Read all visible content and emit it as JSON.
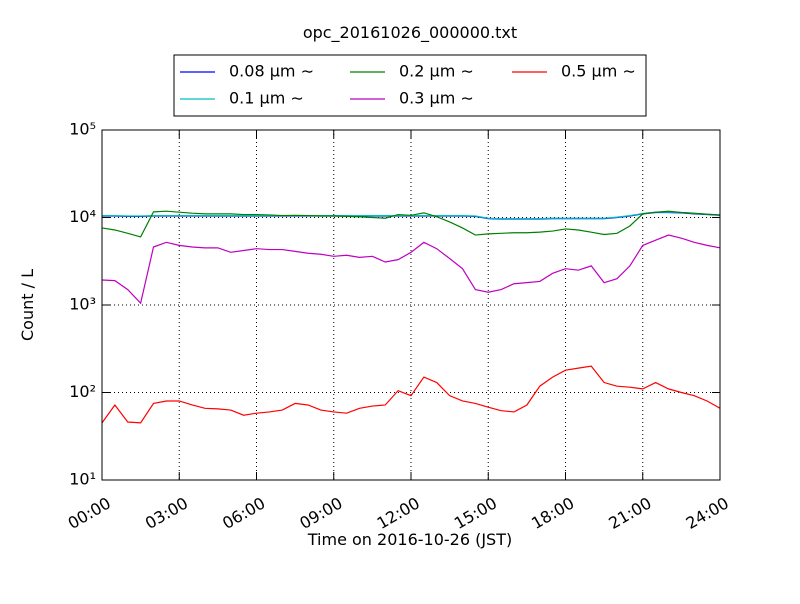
{
  "chart_data": {
    "type": "line",
    "title": "opc_20161026_000000.txt",
    "xlabel": "Time on 2016-10-26 (JST)",
    "ylabel": "Count / L",
    "yscale": "log",
    "grid": true,
    "legend": "top",
    "xlim": [
      0,
      24
    ],
    "xticks": [
      {
        "value": 0,
        "label": "00:00"
      },
      {
        "value": 3,
        "label": "03:00"
      },
      {
        "value": 6,
        "label": "06:00"
      },
      {
        "value": 9,
        "label": "09:00"
      },
      {
        "value": 12,
        "label": "12:00"
      },
      {
        "value": 15,
        "label": "15:00"
      },
      {
        "value": 18,
        "label": "18:00"
      },
      {
        "value": 21,
        "label": "21:00"
      },
      {
        "value": 24,
        "label": "24:00"
      }
    ],
    "ylim": [
      10,
      100000
    ],
    "yticks": [
      {
        "value": 10,
        "label": "10¹"
      },
      {
        "value": 100,
        "label": "10²"
      },
      {
        "value": 1000,
        "label": "10³"
      },
      {
        "value": 10000,
        "label": "10⁴"
      },
      {
        "value": 100000,
        "label": "10⁵"
      }
    ],
    "x": [
      0,
      0.5,
      1,
      1.5,
      2,
      2.5,
      3,
      3.5,
      4,
      4.5,
      5,
      5.5,
      6,
      6.5,
      7,
      7.5,
      8,
      8.5,
      9,
      9.5,
      10,
      10.5,
      11,
      11.5,
      12,
      12.5,
      13,
      13.5,
      14,
      14.5,
      15,
      15.5,
      16,
      16.5,
      17,
      17.5,
      18,
      18.5,
      19,
      19.5,
      20,
      20.5,
      21,
      21.5,
      22,
      22.5,
      23,
      23.5,
      24
    ],
    "series": [
      {
        "name": "0.08 μm ∼",
        "color": "#0000ff",
        "values": [
          10400,
          10400,
          10300,
          10300,
          10400,
          10400,
          10400,
          10400,
          10400,
          10400,
          10400,
          10400,
          10400,
          10400,
          10400,
          10400,
          10400,
          10400,
          10400,
          10400,
          10400,
          10400,
          10400,
          10400,
          10400,
          10400,
          10400,
          10400,
          10400,
          10300,
          9700,
          9600,
          9600,
          9600,
          9600,
          9700,
          9700,
          9700,
          9700,
          9700,
          10000,
          10400,
          11000,
          11400,
          11400,
          11300,
          11000,
          10800,
          10600
        ]
      },
      {
        "name": "0.1 μm ∼",
        "color": "#00bfbf",
        "values": [
          10500,
          10500,
          10400,
          10400,
          10500,
          10500,
          10500,
          10500,
          10500,
          10500,
          10500,
          10500,
          10500,
          10500,
          10500,
          10500,
          10500,
          10500,
          10500,
          10500,
          10500,
          10500,
          10500,
          10500,
          10500,
          10500,
          10500,
          10500,
          10500,
          10400,
          9800,
          9700,
          9700,
          9700,
          9700,
          9800,
          9800,
          9800,
          9800,
          9800,
          10100,
          10500,
          11100,
          11500,
          11500,
          11400,
          11100,
          10900,
          10700
        ]
      },
      {
        "name": "0.2 μm ∼",
        "color": "#008000",
        "values": [
          7600,
          7200,
          6600,
          6000,
          11600,
          11800,
          11500,
          11200,
          11000,
          11000,
          11000,
          10800,
          10800,
          10700,
          10500,
          10600,
          10500,
          10400,
          10400,
          10300,
          10200,
          10000,
          9800,
          10800,
          10600,
          11300,
          10200,
          8900,
          7600,
          6300,
          6500,
          6600,
          6700,
          6700,
          6800,
          7000,
          7400,
          7200,
          6800,
          6400,
          6600,
          8000,
          11000,
          11500,
          11800,
          11400,
          11200,
          10900,
          10700
        ]
      },
      {
        "name": "0.3 μm ∼",
        "color": "#bf00bf",
        "values": [
          1930,
          1900,
          1500,
          1050,
          4600,
          5200,
          4800,
          4600,
          4500,
          4500,
          4000,
          4200,
          4400,
          4300,
          4300,
          4100,
          3900,
          3800,
          3600,
          3700,
          3500,
          3600,
          3100,
          3300,
          4000,
          5200,
          4400,
          3400,
          2600,
          1500,
          1400,
          1500,
          1750,
          1800,
          1860,
          2300,
          2600,
          2500,
          2800,
          1800,
          2000,
          2800,
          4800,
          5500,
          6300,
          5800,
          5200,
          4800,
          4500
        ]
      },
      {
        "name": "0.5 μm ∼",
        "color": "#ff0000",
        "values": [
          45,
          72,
          46,
          45,
          75,
          80,
          80,
          72,
          66,
          65,
          63,
          55,
          58,
          60,
          63,
          75,
          72,
          63,
          60,
          58,
          66,
          70,
          72,
          105,
          92,
          150,
          130,
          92,
          80,
          75,
          68,
          62,
          60,
          72,
          118,
          150,
          180,
          190,
          200,
          130,
          118,
          115,
          110,
          130,
          110,
          100,
          92,
          80,
          66
        ]
      }
    ]
  }
}
